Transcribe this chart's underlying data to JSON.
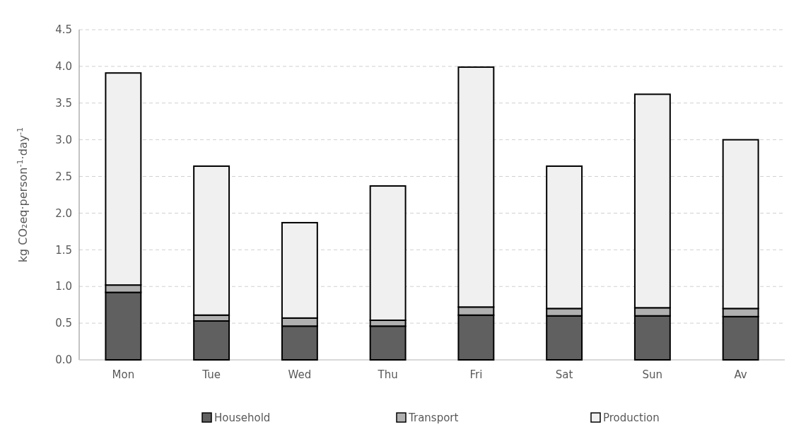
{
  "chart_data": {
    "type": "bar",
    "stacked": true,
    "ylabel": "kg CO₂eq·person$^{-1}$·day$^{-1}$",
    "categories": [
      "Mon",
      "Tue",
      "Wed",
      "Thu",
      "Fri",
      "Sat",
      "Sun",
      "Av"
    ],
    "series": [
      {
        "name": "Household",
        "color": "#606060",
        "values": [
          0.92,
          0.53,
          0.46,
          0.46,
          0.61,
          0.6,
          0.6,
          0.59
        ]
      },
      {
        "name": "Transport",
        "color": "#b0b0b0",
        "values": [
          0.1,
          0.08,
          0.11,
          0.08,
          0.11,
          0.1,
          0.11,
          0.11
        ]
      },
      {
        "name": "Production",
        "color": "#f0f0f0",
        "values": [
          2.89,
          2.03,
          1.3,
          1.83,
          3.27,
          1.94,
          2.91,
          2.3
        ]
      }
    ],
    "ylim": [
      0,
      4.5
    ],
    "yticks": [
      {
        "value": 0,
        "label": "0.0"
      },
      {
        "value": 0.5,
        "label": "0.5"
      },
      {
        "value": 1,
        "label": "1.0"
      },
      {
        "value": 1.5,
        "label": "1.5"
      },
      {
        "value": 2,
        "label": "2.0"
      },
      {
        "value": 2.5,
        "label": "2.5"
      },
      {
        "value": 3,
        "label": "3.0"
      },
      {
        "value": 3.5,
        "label": "3.5"
      },
      {
        "value": 4,
        "label": "4.0"
      },
      {
        "value": 4.5,
        "label": "4.5"
      }
    ],
    "grid": "y",
    "legend": "bottom"
  }
}
